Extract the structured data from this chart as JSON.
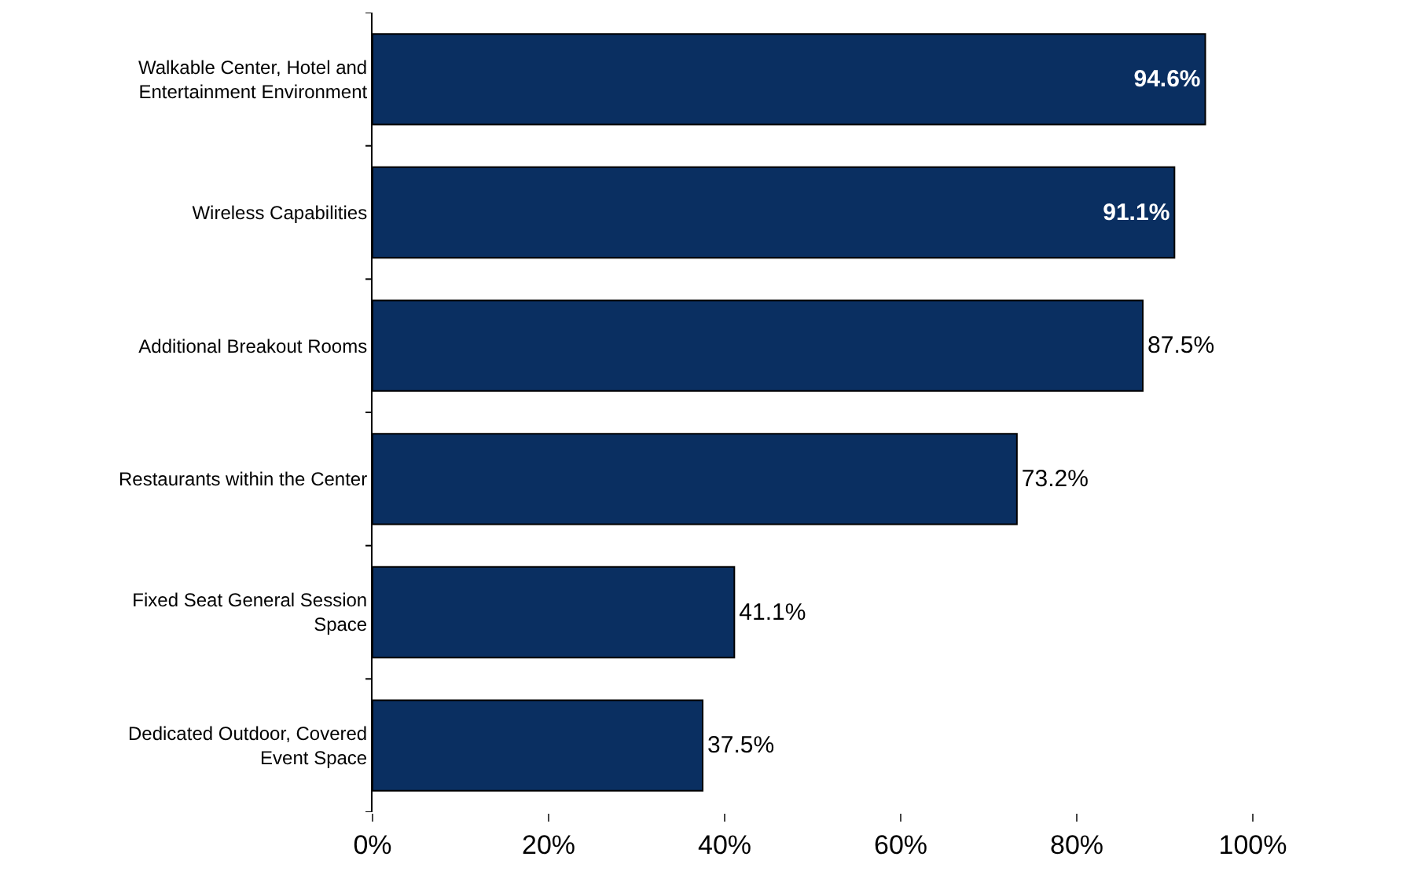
{
  "chart_data": {
    "type": "bar",
    "orientation": "horizontal",
    "categories": [
      "Walkable Center, Hotel and Entertainment Environment",
      "Wireless Capabilities",
      "Additional Breakout Rooms",
      "Restaurants within the Center",
      "Fixed Seat General Session Space",
      "Dedicated Outdoor, Covered Event Space"
    ],
    "values": [
      94.6,
      91.1,
      87.5,
      73.2,
      41.1,
      37.5
    ],
    "value_labels": [
      "94.6%",
      "91.1%",
      "87.5%",
      "73.2%",
      "41.1%",
      "37.5%"
    ],
    "color": "#0a2f61",
    "xlim": [
      0,
      100
    ],
    "xticks": [
      {
        "value": 0,
        "label": "0%"
      },
      {
        "value": 20,
        "label": "20%"
      },
      {
        "value": 40,
        "label": "40%"
      },
      {
        "value": 60,
        "label": "60%"
      },
      {
        "value": 80,
        "label": "80%"
      },
      {
        "value": 100,
        "label": "100%"
      }
    ]
  }
}
